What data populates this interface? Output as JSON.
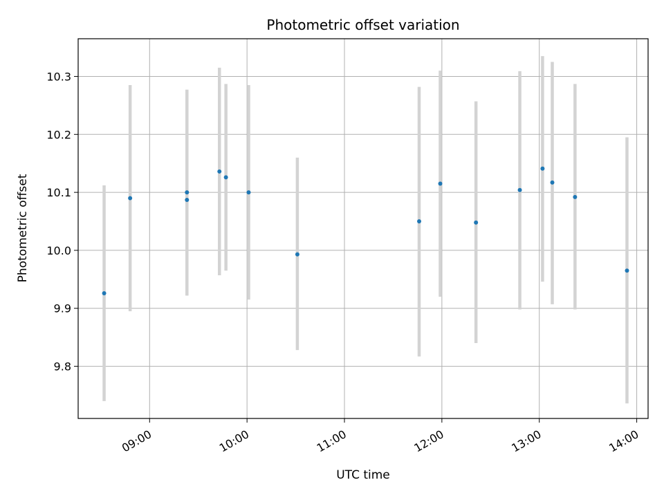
{
  "chart_data": {
    "type": "scatter",
    "title": "Photometric offset variation",
    "xlabel": "UTC time",
    "ylabel": "Photometric offset",
    "x_ticks": [
      "09:00",
      "10:00",
      "11:00",
      "12:00",
      "13:00",
      "14:00"
    ],
    "y_ticks": [
      "9.8",
      "9.9",
      "10.0",
      "10.1",
      "10.2",
      "10.3"
    ],
    "xlim": [
      "08:16",
      "14:07"
    ],
    "ylim": [
      9.71,
      10.365
    ],
    "grid": true,
    "marker_color": "#1f77b4",
    "errorbar_color": "#d3d3d3",
    "points": [
      {
        "x": "08:32",
        "y": 9.926,
        "low": 9.74,
        "high": 10.112
      },
      {
        "x": "08:48",
        "y": 10.09,
        "low": 9.895,
        "high": 10.285
      },
      {
        "x": "09:23",
        "y": 10.1,
        "low": 9.922,
        "high": 10.277
      },
      {
        "x": "09:23",
        "y": 10.087,
        "low": 9.922,
        "high": 10.277
      },
      {
        "x": "09:43",
        "y": 10.136,
        "low": 9.957,
        "high": 10.315
      },
      {
        "x": "09:47",
        "y": 10.126,
        "low": 9.965,
        "high": 10.287
      },
      {
        "x": "10:01",
        "y": 10.1,
        "low": 9.915,
        "high": 10.285
      },
      {
        "x": "10:31",
        "y": 9.993,
        "low": 9.828,
        "high": 10.16
      },
      {
        "x": "11:46",
        "y": 10.05,
        "low": 9.817,
        "high": 10.282
      },
      {
        "x": "11:59",
        "y": 10.115,
        "low": 9.92,
        "high": 10.31
      },
      {
        "x": "12:21",
        "y": 10.048,
        "low": 9.84,
        "high": 10.257
      },
      {
        "x": "12:48",
        "y": 10.104,
        "low": 9.898,
        "high": 10.309
      },
      {
        "x": "13:02",
        "y": 10.141,
        "low": 9.946,
        "high": 10.335
      },
      {
        "x": "13:08",
        "y": 10.117,
        "low": 9.907,
        "high": 10.325
      },
      {
        "x": "13:22",
        "y": 10.092,
        "low": 9.898,
        "high": 10.287
      },
      {
        "x": "13:54",
        "y": 9.965,
        "low": 9.736,
        "high": 10.195
      }
    ]
  }
}
